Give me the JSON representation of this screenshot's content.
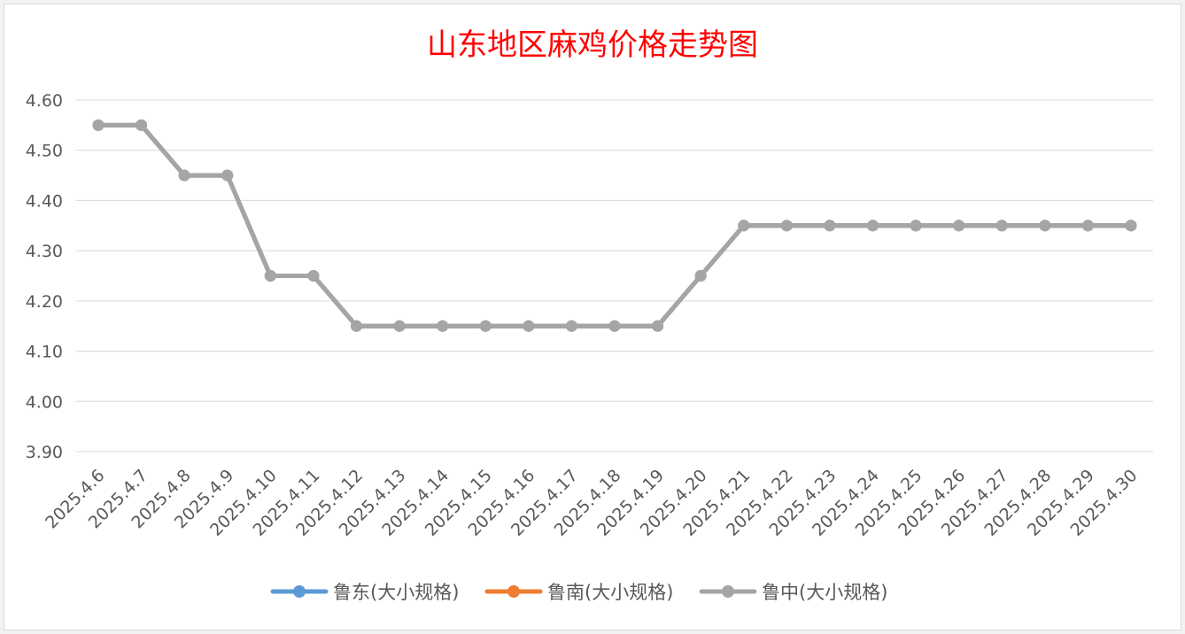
{
  "chart_data": {
    "type": "line",
    "title": "山东地区麻鸡价格走势图",
    "xlabel": "",
    "ylabel": "",
    "ylim": [
      3.9,
      4.6
    ],
    "yticks": [
      "4.60",
      "4.50",
      "4.40",
      "4.30",
      "4.20",
      "4.10",
      "4.00",
      "3.90"
    ],
    "grid": true,
    "legend_position": "bottom",
    "categories": [
      "2025.4.6",
      "2025.4.7",
      "2025.4.8",
      "2025.4.9",
      "2025.4.10",
      "2025.4.11",
      "2025.4.12",
      "2025.4.13",
      "2025.4.14",
      "2025.4.15",
      "2025.4.16",
      "2025.4.17",
      "2025.4.18",
      "2025.4.19",
      "2025.4.20",
      "2025.4.21",
      "2025.4.22",
      "2025.4.23",
      "2025.4.24",
      "2025.4.25",
      "2025.4.26",
      "2025.4.27",
      "2025.4.28",
      "2025.4.29",
      "2025.4.30"
    ],
    "series": [
      {
        "name": "鲁东(大小规格)",
        "color": "#5b9bd5",
        "values": [
          4.55,
          4.55,
          4.45,
          4.45,
          4.25,
          4.25,
          4.15,
          4.15,
          4.15,
          4.15,
          4.15,
          4.15,
          4.15,
          4.15,
          4.25,
          4.35,
          4.35,
          4.35,
          4.35,
          4.35,
          4.35,
          4.35,
          4.35,
          4.35,
          4.35
        ]
      },
      {
        "name": "鲁南(大小规格)",
        "color": "#ed7d31",
        "values": [
          4.55,
          4.55,
          4.45,
          4.45,
          4.25,
          4.25,
          4.15,
          4.15,
          4.15,
          4.15,
          4.15,
          4.15,
          4.15,
          4.15,
          4.25,
          4.35,
          4.35,
          4.35,
          4.35,
          4.35,
          4.35,
          4.35,
          4.35,
          4.35,
          4.35
        ]
      },
      {
        "name": "鲁中(大小规格)",
        "color": "#a5a5a5",
        "values": [
          4.55,
          4.55,
          4.45,
          4.45,
          4.25,
          4.25,
          4.15,
          4.15,
          4.15,
          4.15,
          4.15,
          4.15,
          4.15,
          4.15,
          4.25,
          4.35,
          4.35,
          4.35,
          4.35,
          4.35,
          4.35,
          4.35,
          4.35,
          4.35,
          4.35
        ]
      }
    ]
  }
}
